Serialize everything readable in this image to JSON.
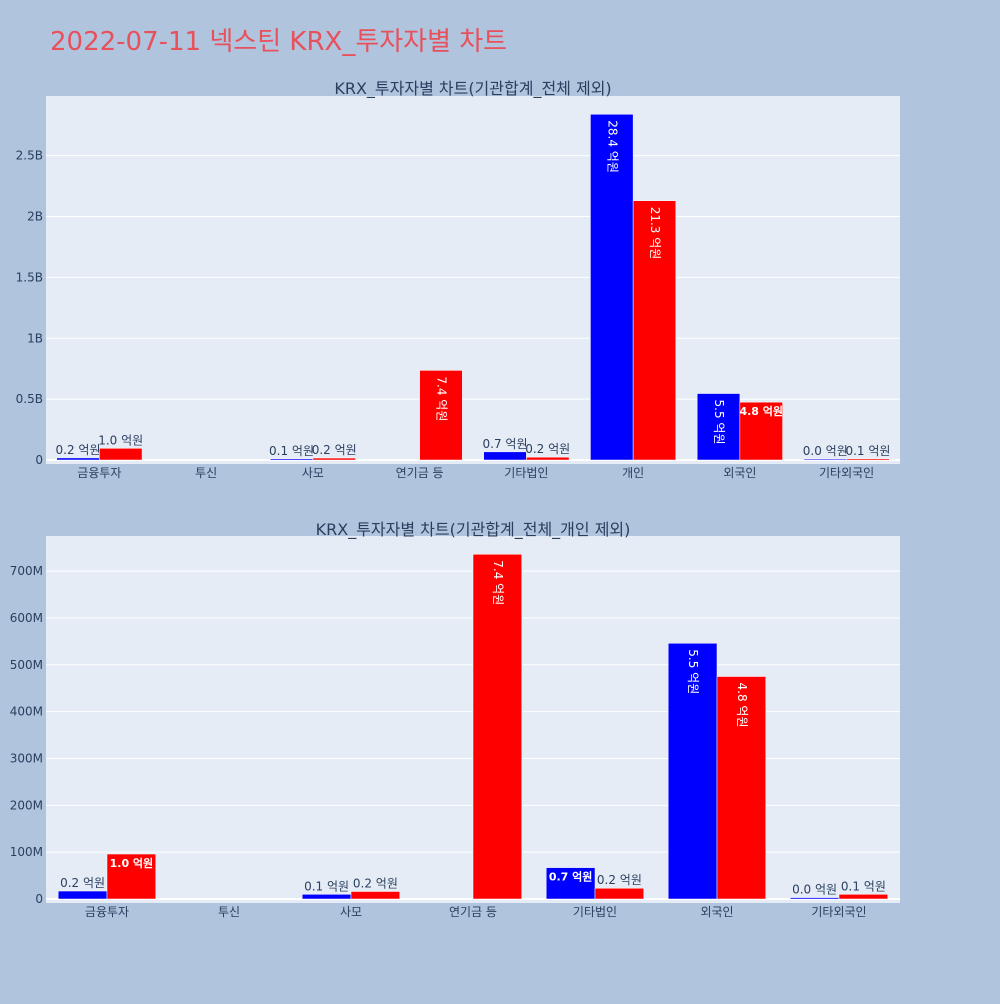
{
  "page_title": "2022-07-11 넥스틴 KRX_투자자별 차트",
  "colors": {
    "page_bg": "#b0c4de",
    "plot_bg": "#e5ecf6",
    "title": "#e8505b",
    "buy": "#0000ff",
    "sell": "#ff0000",
    "text": "#2a3f5f",
    "grid": "#ffffff"
  },
  "chart_data": [
    {
      "type": "bar",
      "title": "KRX_투자자별 차트(기관합계_전체 제외)",
      "categories": [
        "금융투자",
        "투신",
        "사모",
        "연기금 등",
        "기타법인",
        "개인",
        "외국인",
        "기타외국인"
      ],
      "series": [
        {
          "color": "#0000ff",
          "values": [
            17000000,
            0,
            10000000,
            0,
            67000000,
            2840000000,
            546000000,
            3000000
          ],
          "labels": [
            "0.2 억원",
            "",
            "0.1 억원",
            "",
            "0.7 억원",
            "28.4 억원",
            "5.5 억원",
            "0.0 억원"
          ]
        },
        {
          "color": "#ff0000",
          "values": [
            96000000,
            0,
            16000000,
            736000000,
            23000000,
            2130000000,
            475000000,
            10000000
          ],
          "labels": [
            "1.0 억원",
            "",
            "0.2 억원",
            "7.4 억원",
            "0.2 억원",
            "21.3 억원",
            "4.8 억원",
            "0.1 억원"
          ]
        }
      ],
      "yticks": [
        {
          "value": 0,
          "label": "0"
        },
        {
          "value": 500000000,
          "label": "0.5B"
        },
        {
          "value": 1000000000,
          "label": "1B"
        },
        {
          "value": 1500000000,
          "label": "1.5B"
        },
        {
          "value": 2000000000,
          "label": "2B"
        },
        {
          "value": 2500000000,
          "label": "2.5B"
        }
      ],
      "ylim": [
        0,
        2990000000
      ],
      "grid": true,
      "legend": "none"
    },
    {
      "type": "bar",
      "title": "KRX_투자자별 차트(기관합계_전체_개인 제외)",
      "categories": [
        "금융투자",
        "투신",
        "사모",
        "연기금 등",
        "기타법인",
        "외국인",
        "기타외국인"
      ],
      "series": [
        {
          "color": "#0000ff",
          "values": [
            17000000,
            0,
            10000000,
            0,
            67000000,
            546000000,
            3000000
          ],
          "labels": [
            "0.2 억원",
            "",
            "0.1 억원",
            "",
            "0.7 억원",
            "5.5 억원",
            "0.0 억원"
          ]
        },
        {
          "color": "#ff0000",
          "values": [
            96000000,
            0,
            16000000,
            736000000,
            23000000,
            475000000,
            10000000
          ],
          "labels": [
            "1.0 억원",
            "",
            "0.2 억원",
            "7.4 억원",
            "0.2 억원",
            "4.8 억원",
            "0.1 억원"
          ]
        }
      ],
      "yticks": [
        {
          "value": 0,
          "label": "0"
        },
        {
          "value": 100000000,
          "label": "100M"
        },
        {
          "value": 200000000,
          "label": "200M"
        },
        {
          "value": 300000000,
          "label": "300M"
        },
        {
          "value": 400000000,
          "label": "400M"
        },
        {
          "value": 500000000,
          "label": "500M"
        },
        {
          "value": 600000000,
          "label": "600M"
        },
        {
          "value": 700000000,
          "label": "700M"
        }
      ],
      "ylim": [
        0,
        775000000
      ],
      "grid": true,
      "legend": "none"
    }
  ]
}
